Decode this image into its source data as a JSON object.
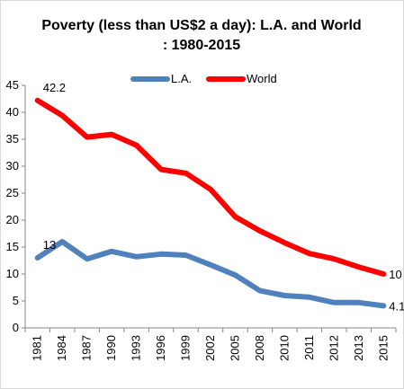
{
  "chart_data": {
    "type": "line",
    "title_line1": "Poverty (less than US$2 a day):  L.A. and World",
    "title_line2": ": 1980-2015",
    "xlabel": "",
    "ylabel": "",
    "ylim": [
      0,
      45
    ],
    "yticks": [
      "0",
      "5",
      "10",
      "15",
      "20",
      "25",
      "30",
      "35",
      "40",
      "45"
    ],
    "categories": [
      "1981",
      "1984",
      "1987",
      "1990",
      "1993",
      "1996",
      "1999",
      "2002",
      "2005",
      "2008",
      "2010",
      "2011",
      "2012",
      "2013",
      "2015"
    ],
    "grid": false,
    "legend_position": "top",
    "series": [
      {
        "name": "L.A.",
        "color": "#4f81bd",
        "values": [
          13,
          16,
          12.8,
          14.2,
          13.2,
          13.7,
          13.5,
          11.7,
          9.8,
          6.9,
          6.0,
          5.7,
          4.7,
          4.7,
          4.1
        ]
      },
      {
        "name": "World",
        "color": "#ff0000",
        "values": [
          42.2,
          39.4,
          35.4,
          35.9,
          33.9,
          29.4,
          28.7,
          25.7,
          20.6,
          18.0,
          15.8,
          13.8,
          12.8,
          11.3,
          10
        ]
      }
    ],
    "data_labels": [
      {
        "series": 1,
        "index": 0,
        "text": "42.2",
        "pos": "above"
      },
      {
        "series": 0,
        "index": 0,
        "text": "13",
        "pos": "above"
      },
      {
        "series": 1,
        "index": 14,
        "text": "10",
        "pos": "right"
      },
      {
        "series": 0,
        "index": 14,
        "text": "4.1",
        "pos": "right"
      }
    ]
  }
}
